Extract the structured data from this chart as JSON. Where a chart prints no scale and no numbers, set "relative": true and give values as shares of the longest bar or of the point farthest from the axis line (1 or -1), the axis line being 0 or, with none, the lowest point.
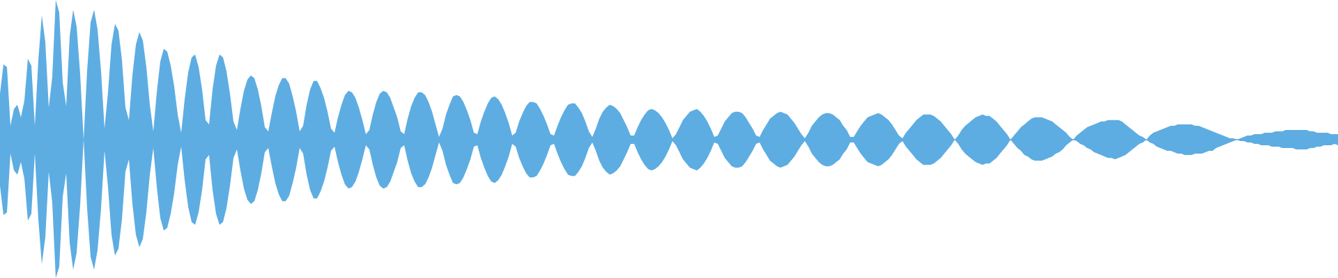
{
  "chart_data": {
    "type": "area",
    "relative": true,
    "ref_lines": [
      {
        "axis": "y",
        "value": 0,
        "color": "#5dade2"
      }
    ],
    "categories": [
      null,
      null,
      null,
      null,
      null,
      null,
      null,
      null,
      null,
      null,
      null,
      null,
      null,
      null,
      null,
      null,
      null,
      null,
      null,
      null,
      null,
      null,
      null,
      null,
      null,
      null,
      null,
      null,
      null,
      null,
      null,
      null,
      null,
      null,
      null,
      null,
      null,
      null,
      null,
      null,
      null,
      null,
      null,
      null,
      null,
      null,
      null,
      null,
      null,
      null,
      null,
      null,
      null,
      null,
      null,
      null,
      null,
      null,
      null,
      null,
      null,
      null,
      null,
      null,
      null,
      null,
      null,
      null,
      null,
      null,
      null,
      null,
      null,
      null,
      null,
      null,
      null,
      null,
      null,
      null,
      null,
      null,
      null,
      null,
      null,
      null,
      null,
      null,
      null,
      null,
      null,
      null,
      null,
      null,
      null,
      null,
      null,
      null,
      null,
      null,
      null,
      null,
      null,
      null,
      null,
      null,
      null,
      null,
      null,
      null,
      null,
      null,
      null,
      null,
      null,
      null,
      null,
      null,
      null,
      null,
      null,
      null,
      null,
      null,
      null,
      null,
      null,
      null,
      null,
      null,
      null,
      null,
      null,
      null,
      null,
      null,
      null,
      null,
      null,
      null,
      null,
      null,
      null,
      null,
      null,
      null,
      null,
      null,
      null,
      null,
      null,
      null,
      null,
      null,
      null,
      null,
      null,
      null,
      null,
      null,
      null,
      null,
      null,
      null,
      null,
      null,
      null,
      null,
      null,
      null,
      null,
      null,
      null,
      null,
      null,
      null,
      null,
      null,
      null,
      null,
      null,
      null,
      null,
      null,
      null,
      null,
      null,
      null,
      null,
      null,
      null,
      null,
      null,
      null,
      null,
      null,
      null,
      null,
      null,
      null,
      null,
      null,
      null,
      null,
      null,
      null,
      null,
      null,
      null,
      null,
      null,
      null,
      null,
      null,
      null,
      null,
      null,
      null,
      null,
      null,
      null,
      null,
      null,
      null,
      null,
      null,
      null,
      null,
      null,
      null,
      null,
      null,
      null,
      null,
      null,
      null,
      null,
      null,
      null,
      null,
      null,
      null,
      null,
      null,
      null,
      null,
      null,
      null,
      null,
      null,
      null,
      null,
      null,
      null,
      null,
      null,
      null,
      null,
      null,
      null,
      null,
      null,
      null,
      null,
      null,
      null,
      null,
      null,
      null,
      null,
      null,
      null,
      null,
      null,
      null,
      null,
      null,
      null,
      null,
      null,
      null,
      null,
      null,
      null,
      null,
      null,
      null,
      null,
      null,
      null,
      null,
      null,
      null,
      null,
      null,
      null,
      null,
      null,
      null,
      null,
      null,
      null,
      null,
      null,
      null,
      null,
      null,
      null,
      null,
      null,
      null,
      null,
      null,
      null,
      null,
      null,
      null,
      null,
      null,
      null,
      null,
      null,
      null,
      null,
      null,
      null,
      null,
      null,
      null,
      null,
      null,
      null,
      null,
      null,
      null,
      null,
      null,
      null,
      null,
      null,
      null,
      null,
      null,
      null,
      null,
      null,
      null,
      null,
      null,
      null,
      null,
      null,
      null,
      null,
      null,
      null,
      null,
      null,
      null,
      null,
      null,
      null,
      null,
      null,
      null,
      null,
      null,
      null,
      null,
      null,
      null,
      null,
      null,
      null,
      null,
      null,
      null,
      null,
      null,
      null,
      null,
      null,
      null,
      null,
      null
    ],
    "series": [
      {
        "color": "#5dade2",
        "values": [
          0.33,
          0.54,
          0.52,
          0.1,
          0.22,
          0.25,
          0.16,
          0.28,
          0.58,
          0.53,
          0.1,
          0.57,
          0.89,
          0.7,
          0.23,
          0.45,
          1.0,
          0.91,
          0.41,
          0.24,
          0.74,
          0.93,
          0.81,
          0.47,
          0.0,
          0.49,
          0.84,
          0.93,
          0.79,
          0.49,
          0.08,
          0.34,
          0.68,
          0.83,
          0.78,
          0.57,
          0.23,
          0.14,
          0.46,
          0.68,
          0.77,
          0.71,
          0.52,
          0.25,
          0.06,
          0.34,
          0.56,
          0.65,
          0.63,
          0.53,
          0.38,
          0.18,
          0.05,
          0.29,
          0.48,
          0.59,
          0.61,
          0.52,
          0.36,
          0.14,
          0.11,
          0.36,
          0.53,
          0.61,
          0.59,
          0.49,
          0.33,
          0.13,
          0.07,
          0.22,
          0.35,
          0.43,
          0.46,
          0.44,
          0.36,
          0.24,
          0.09,
          0.06,
          0.19,
          0.31,
          0.39,
          0.44,
          0.44,
          0.4,
          0.31,
          0.2,
          0.06,
          0.1,
          0.25,
          0.36,
          0.42,
          0.42,
          0.37,
          0.3,
          0.2,
          0.08,
          0.05,
          0.16,
          0.25,
          0.32,
          0.35,
          0.34,
          0.3,
          0.23,
          0.14,
          0.04,
          0.07,
          0.18,
          0.27,
          0.33,
          0.35,
          0.34,
          0.3,
          0.23,
          0.16,
          0.06,
          0.04,
          0.15,
          0.24,
          0.3,
          0.34,
          0.34,
          0.32,
          0.27,
          0.2,
          0.11,
          0.02,
          0.08,
          0.18,
          0.25,
          0.31,
          0.32,
          0.31,
          0.27,
          0.21,
          0.14,
          0.05,
          0.04,
          0.13,
          0.2,
          0.26,
          0.3,
          0.31,
          0.29,
          0.25,
          0.19,
          0.12,
          0.03,
          0.05,
          0.13,
          0.19,
          0.24,
          0.27,
          0.27,
          0.26,
          0.22,
          0.17,
          0.11,
          0.04,
          0.03,
          0.1,
          0.16,
          0.21,
          0.25,
          0.26,
          0.26,
          0.23,
          0.19,
          0.13,
          0.06,
          0.02,
          0.08,
          0.15,
          0.2,
          0.23,
          0.25,
          0.24,
          0.22,
          0.19,
          0.14,
          0.09,
          0.03,
          0.03,
          0.09,
          0.14,
          0.18,
          0.21,
          0.22,
          0.21,
          0.19,
          0.16,
          0.12,
          0.07,
          0.01,
          0.04,
          0.09,
          0.14,
          0.17,
          0.2,
          0.21,
          0.22,
          0.2,
          0.17,
          0.13,
          0.08,
          0.02,
          0.03,
          0.08,
          0.13,
          0.16,
          0.19,
          0.2,
          0.2,
          0.19,
          0.16,
          0.12,
          0.08,
          0.03,
          0.02,
          0.07,
          0.11,
          0.15,
          0.17,
          0.19,
          0.2,
          0.19,
          0.18,
          0.15,
          0.12,
          0.08,
          0.04,
          0.01,
          0.05,
          0.1,
          0.13,
          0.16,
          0.18,
          0.19,
          0.19,
          0.18,
          0.16,
          0.14,
          0.1,
          0.07,
          0.02,
          0.02,
          0.06,
          0.1,
          0.13,
          0.16,
          0.17,
          0.18,
          0.19,
          0.18,
          0.16,
          0.14,
          0.11,
          0.07,
          0.03,
          0.01,
          0.05,
          0.08,
          0.11,
          0.14,
          0.16,
          0.18,
          0.18,
          0.18,
          0.17,
          0.15,
          0.13,
          0.1,
          0.07,
          0.04,
          0.0,
          0.03,
          0.07,
          0.1,
          0.12,
          0.14,
          0.16,
          0.17,
          0.18,
          0.17,
          0.17,
          0.15,
          0.13,
          0.1,
          0.07,
          0.04,
          0.0,
          0.03,
          0.06,
          0.09,
          0.11,
          0.13,
          0.15,
          0.16,
          0.16,
          0.16,
          0.15,
          0.14,
          0.13,
          0.11,
          0.09,
          0.07,
          0.05,
          0.02,
          0.0,
          0.03,
          0.05,
          0.07,
          0.09,
          0.1,
          0.11,
          0.12,
          0.13,
          0.13,
          0.14,
          0.14,
          0.14,
          0.14,
          0.13,
          0.11,
          0.09,
          0.07,
          0.05,
          0.03,
          0.02,
          0.0,
          0.03,
          0.05,
          0.06,
          0.07,
          0.08,
          0.09,
          0.1,
          0.1,
          0.11,
          0.11,
          0.11,
          0.11,
          0.11,
          0.1,
          0.1,
          0.09,
          0.08,
          0.07,
          0.06,
          0.05,
          0.04,
          0.03,
          0.02,
          0.01,
          0.01,
          0.0,
          0.01,
          0.02,
          0.03,
          0.03,
          0.04,
          0.04,
          0.04,
          0.05,
          0.05,
          0.05,
          0.06,
          0.06,
          0.06,
          0.07,
          0.07,
          0.07,
          0.07,
          0.07,
          0.07,
          0.07,
          0.06,
          0.06,
          0.05,
          0.05,
          0.05,
          0.05,
          0.04,
          0.04,
          0.04
        ]
      },
      {
        "color": "#5dade2",
        "values": [
          -0.33,
          -0.54,
          -0.52,
          -0.1,
          -0.22,
          -0.25,
          -0.16,
          -0.28,
          -0.58,
          -0.53,
          -0.1,
          -0.57,
          -0.89,
          -0.7,
          -0.23,
          -0.45,
          -0.99,
          -0.91,
          -0.41,
          -0.24,
          -0.74,
          -0.93,
          -0.81,
          -0.47,
          0.0,
          -0.49,
          -0.84,
          -0.93,
          -0.79,
          -0.49,
          -0.08,
          -0.34,
          -0.68,
          -0.83,
          -0.78,
          -0.57,
          -0.23,
          -0.14,
          -0.46,
          -0.68,
          -0.77,
          -0.71,
          -0.52,
          -0.25,
          -0.06,
          -0.34,
          -0.56,
          -0.65,
          -0.63,
          -0.53,
          -0.38,
          -0.18,
          -0.05,
          -0.29,
          -0.48,
          -0.59,
          -0.61,
          -0.52,
          -0.36,
          -0.14,
          -0.11,
          -0.36,
          -0.53,
          -0.61,
          -0.59,
          -0.49,
          -0.33,
          -0.13,
          -0.07,
          -0.22,
          -0.35,
          -0.43,
          -0.46,
          -0.44,
          -0.36,
          -0.24,
          -0.09,
          -0.06,
          -0.19,
          -0.31,
          -0.39,
          -0.44,
          -0.44,
          -0.4,
          -0.31,
          -0.2,
          -0.06,
          -0.1,
          -0.25,
          -0.36,
          -0.42,
          -0.42,
          -0.37,
          -0.3,
          -0.2,
          -0.08,
          -0.05,
          -0.16,
          -0.25,
          -0.32,
          -0.35,
          -0.34,
          -0.3,
          -0.23,
          -0.14,
          -0.04,
          -0.07,
          -0.18,
          -0.27,
          -0.33,
          -0.35,
          -0.34,
          -0.3,
          -0.23,
          -0.16,
          -0.06,
          -0.04,
          -0.15,
          -0.24,
          -0.3,
          -0.34,
          -0.34,
          -0.32,
          -0.27,
          -0.2,
          -0.11,
          -0.02,
          -0.08,
          -0.18,
          -0.25,
          -0.31,
          -0.32,
          -0.31,
          -0.27,
          -0.21,
          -0.14,
          -0.05,
          -0.04,
          -0.13,
          -0.2,
          -0.26,
          -0.3,
          -0.31,
          -0.29,
          -0.25,
          -0.19,
          -0.12,
          -0.03,
          -0.05,
          -0.13,
          -0.19,
          -0.24,
          -0.27,
          -0.27,
          -0.26,
          -0.22,
          -0.17,
          -0.11,
          -0.04,
          -0.03,
          -0.1,
          -0.16,
          -0.21,
          -0.25,
          -0.26,
          -0.26,
          -0.23,
          -0.19,
          -0.13,
          -0.06,
          -0.02,
          -0.08,
          -0.15,
          -0.2,
          -0.23,
          -0.25,
          -0.24,
          -0.22,
          -0.19,
          -0.14,
          -0.09,
          -0.03,
          -0.03,
          -0.09,
          -0.14,
          -0.18,
          -0.21,
          -0.22,
          -0.21,
          -0.19,
          -0.16,
          -0.12,
          -0.07,
          -0.01,
          -0.04,
          -0.09,
          -0.14,
          -0.17,
          -0.2,
          -0.21,
          -0.22,
          -0.2,
          -0.17,
          -0.13,
          -0.08,
          -0.02,
          -0.03,
          -0.08,
          -0.13,
          -0.16,
          -0.19,
          -0.2,
          -0.2,
          -0.19,
          -0.16,
          -0.12,
          -0.08,
          -0.03,
          -0.02,
          -0.07,
          -0.11,
          -0.15,
          -0.17,
          -0.19,
          -0.2,
          -0.19,
          -0.18,
          -0.15,
          -0.12,
          -0.08,
          -0.04,
          -0.01,
          -0.05,
          -0.1,
          -0.13,
          -0.16,
          -0.18,
          -0.19,
          -0.19,
          -0.18,
          -0.16,
          -0.14,
          -0.1,
          -0.07,
          -0.02,
          -0.02,
          -0.06,
          -0.1,
          -0.13,
          -0.16,
          -0.17,
          -0.18,
          -0.19,
          -0.18,
          -0.16,
          -0.14,
          -0.11,
          -0.07,
          -0.03,
          -0.01,
          -0.05,
          -0.08,
          -0.11,
          -0.14,
          -0.16,
          -0.18,
          -0.18,
          -0.18,
          -0.17,
          -0.15,
          -0.13,
          -0.1,
          -0.07,
          -0.04,
          0.0,
          -0.03,
          -0.07,
          -0.1,
          -0.12,
          -0.14,
          -0.16,
          -0.17,
          -0.18,
          -0.17,
          -0.17,
          -0.15,
          -0.13,
          -0.1,
          -0.07,
          -0.04,
          0.0,
          -0.03,
          -0.06,
          -0.08,
          -0.11,
          -0.12,
          -0.14,
          -0.15,
          -0.15,
          -0.15,
          -0.14,
          -0.13,
          -0.12,
          -0.1,
          -0.09,
          -0.07,
          -0.04,
          -0.02,
          0.0,
          -0.01,
          -0.03,
          -0.04,
          -0.06,
          -0.07,
          -0.09,
          -0.1,
          -0.11,
          -0.12,
          -0.13,
          -0.13,
          -0.14,
          -0.13,
          -0.12,
          -0.11,
          -0.09,
          -0.07,
          -0.05,
          -0.03,
          -0.02,
          0.0,
          -0.02,
          -0.03,
          -0.05,
          -0.06,
          -0.07,
          -0.08,
          -0.08,
          -0.09,
          -0.1,
          -0.1,
          -0.11,
          -0.11,
          -0.11,
          -0.1,
          -0.1,
          -0.1,
          -0.09,
          -0.08,
          -0.08,
          -0.06,
          -0.05,
          -0.04,
          -0.03,
          -0.02,
          -0.01,
          0.0,
          -0.01,
          -0.01,
          -0.02,
          -0.02,
          -0.03,
          -0.03,
          -0.04,
          -0.04,
          -0.04,
          -0.05,
          -0.05,
          -0.05,
          -0.06,
          -0.06,
          -0.06,
          -0.06,
          -0.07,
          -0.07,
          -0.07,
          -0.07,
          -0.06,
          -0.06,
          -0.05,
          -0.05,
          -0.04,
          -0.04,
          -0.04,
          -0.03,
          -0.04
        ]
      }
    ]
  }
}
